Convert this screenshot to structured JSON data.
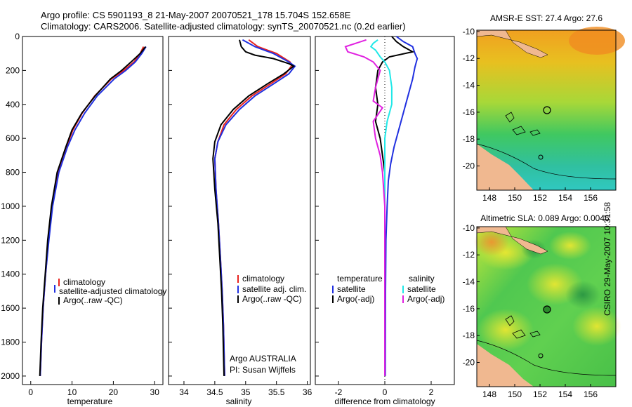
{
  "header": {
    "line1": "Argo profile: CS 5901193_8 21-May-2007 20070521_178 15.704S 152.658E",
    "line2": "Climatology: CARS2006. Satellite-adjusted climatology: synTS_20070521.nc (0.2d earlier)"
  },
  "credits": {
    "program": "Argo AUSTRALIA",
    "pi": "PI: Susan Wijffels",
    "stamp": "CSIRO 29-May-2007 10:31:58"
  },
  "colors": {
    "clim": "#e8231f",
    "sat": "#2030e0",
    "argo": "#000000",
    "sat_s": "#20e8e8",
    "argo_s": "#e020e0"
  },
  "chart_data": [
    {
      "id": "temperature",
      "type": "line",
      "xlabel": "temperature",
      "ylabel": "depth",
      "xlim": [
        -2,
        32
      ],
      "ylim": [
        0,
        2050
      ],
      "xticks": [
        0,
        10,
        20,
        30
      ],
      "yticks": [
        0,
        200,
        400,
        600,
        800,
        1000,
        1200,
        1400,
        1600,
        1800,
        2000
      ],
      "legend": [
        "climatology",
        "satellite-adjusted climatology",
        "Argo(..raw -QC)"
      ],
      "series": [
        {
          "name": "climatology",
          "color": "#e8231f",
          "points": [
            [
              27.3,
              60
            ],
            [
              26.5,
              100
            ],
            [
              25,
              150
            ],
            [
              22.5,
              200
            ],
            [
              19.5,
              250
            ],
            [
              15.5,
              350
            ],
            [
              12.5,
              450
            ],
            [
              10.2,
              550
            ],
            [
              8.6,
              650
            ],
            [
              6.6,
              800
            ],
            [
              5.2,
              1000
            ],
            [
              4.3,
              1200
            ],
            [
              3.6,
              1400
            ],
            [
              3.0,
              1600
            ],
            [
              2.6,
              1800
            ],
            [
              2.3,
              2000
            ]
          ]
        },
        {
          "name": "satellite-adjusted climatology",
          "color": "#2030e0",
          "points": [
            [
              27.9,
              60
            ],
            [
              26.9,
              100
            ],
            [
              25.3,
              150
            ],
            [
              23,
              200
            ],
            [
              20.2,
              250
            ],
            [
              16.1,
              350
            ],
            [
              13.1,
              450
            ],
            [
              10.7,
              550
            ],
            [
              8.9,
              650
            ],
            [
              6.8,
              800
            ],
            [
              5.3,
              1000
            ],
            [
              4.4,
              1200
            ],
            [
              3.6,
              1400
            ],
            [
              3.0,
              1600
            ],
            [
              2.6,
              1800
            ],
            [
              2.3,
              2000
            ]
          ]
        },
        {
          "name": "Argo(..raw -QC)",
          "color": "#000000",
          "points": [
            [
              27.8,
              60
            ],
            [
              26.5,
              100
            ],
            [
              24.3,
              150
            ],
            [
              22,
              200
            ],
            [
              19.3,
              250
            ],
            [
              15.6,
              350
            ],
            [
              12.4,
              450
            ],
            [
              10.0,
              550
            ],
            [
              8.5,
              650
            ],
            [
              6.4,
              800
            ],
            [
              5.0,
              1000
            ],
            [
              4.1,
              1200
            ],
            [
              3.5,
              1400
            ],
            [
              2.9,
              1600
            ],
            [
              2.5,
              1800
            ],
            [
              2.2,
              2000
            ]
          ]
        }
      ]
    },
    {
      "id": "salinity",
      "type": "line",
      "xlabel": "salinity",
      "ylabel": "depth",
      "xlim": [
        33.75,
        36.05
      ],
      "ylim": [
        0,
        2050
      ],
      "xticks": [
        34,
        34.5,
        35,
        35.5,
        36
      ],
      "yticks": [
        0,
        200,
        400,
        600,
        800,
        1000,
        1200,
        1400,
        1600,
        1800,
        2000
      ],
      "legend": [
        "climatology",
        "satellite adj. clim.",
        "Argo(..raw -QC)"
      ],
      "series": [
        {
          "name": "climatology",
          "color": "#e8231f",
          "points": [
            [
              35.05,
              20
            ],
            [
              35.2,
              60
            ],
            [
              35.5,
              100
            ],
            [
              35.72,
              150
            ],
            [
              35.75,
              170
            ],
            [
              35.65,
              220
            ],
            [
              35.4,
              280
            ],
            [
              35.1,
              350
            ],
            [
              34.85,
              430
            ],
            [
              34.65,
              520
            ],
            [
              34.55,
              620
            ],
            [
              34.5,
              720
            ],
            [
              34.52,
              900
            ],
            [
              34.56,
              1100
            ],
            [
              34.59,
              1300
            ],
            [
              34.62,
              1500
            ],
            [
              34.64,
              1700
            ],
            [
              34.66,
              2000
            ]
          ]
        },
        {
          "name": "satellite adj. clim.",
          "color": "#2030e0",
          "points": [
            [
              34.95,
              20
            ],
            [
              35.15,
              60
            ],
            [
              35.45,
              100
            ],
            [
              35.7,
              150
            ],
            [
              35.8,
              175
            ],
            [
              35.7,
              220
            ],
            [
              35.45,
              280
            ],
            [
              35.15,
              350
            ],
            [
              34.9,
              430
            ],
            [
              34.68,
              520
            ],
            [
              34.55,
              620
            ],
            [
              34.5,
              720
            ],
            [
              34.52,
              900
            ],
            [
              34.56,
              1100
            ],
            [
              34.59,
              1300
            ],
            [
              34.62,
              1500
            ],
            [
              34.64,
              1700
            ],
            [
              34.66,
              2000
            ]
          ]
        },
        {
          "name": "Argo(..raw -QC)",
          "color": "#000000",
          "points": [
            [
              34.9,
              20
            ],
            [
              34.93,
              60
            ],
            [
              35.0,
              90
            ],
            [
              35.15,
              110
            ],
            [
              35.45,
              130
            ],
            [
              35.7,
              160
            ],
            [
              35.78,
              175
            ],
            [
              35.62,
              220
            ],
            [
              35.35,
              280
            ],
            [
              35.05,
              350
            ],
            [
              34.8,
              430
            ],
            [
              34.6,
              520
            ],
            [
              34.5,
              620
            ],
            [
              34.47,
              720
            ],
            [
              34.5,
              900
            ],
            [
              34.55,
              1100
            ],
            [
              34.58,
              1300
            ],
            [
              34.61,
              1500
            ],
            [
              34.63,
              1700
            ],
            [
              34.65,
              2000
            ]
          ]
        }
      ]
    },
    {
      "id": "difference",
      "type": "line",
      "xlabel": "difference from climatology",
      "ylabel": "depth",
      "xlim": [
        -3,
        3
      ],
      "ylim": [
        0,
        2050
      ],
      "xticks": [
        -2,
        0,
        2
      ],
      "yticks": [
        0,
        200,
        400,
        600,
        800,
        1000,
        1200,
        1400,
        1600,
        1800,
        2000
      ],
      "legend_temp": [
        "temperature",
        "satellite",
        "Argo(-adj)"
      ],
      "legend_sal": [
        "salinity",
        "satellite",
        "Argo(-adj)"
      ],
      "series": [
        {
          "name": "temperature satellite",
          "color": "#2030e0",
          "points": [
            [
              0.5,
              0
            ],
            [
              0.8,
              30
            ],
            [
              1.2,
              60
            ],
            [
              1.3,
              100
            ],
            [
              1.4,
              130
            ],
            [
              1.3,
              180
            ],
            [
              1.2,
              250
            ],
            [
              1.0,
              350
            ],
            [
              0.8,
              450
            ],
            [
              0.6,
              550
            ],
            [
              0.4,
              650
            ],
            [
              0.25,
              750
            ],
            [
              0.15,
              850
            ],
            [
              0.1,
              1000
            ],
            [
              0.05,
              1200
            ],
            [
              0.03,
              1500
            ],
            [
              0.02,
              2000
            ]
          ]
        },
        {
          "name": "temperature Argo(-adj)",
          "color": "#000000",
          "points": [
            [
              0.3,
              0
            ],
            [
              0.5,
              30
            ],
            [
              0.8,
              60
            ],
            [
              1.2,
              90
            ],
            [
              0.2,
              120
            ],
            [
              -0.1,
              150
            ],
            [
              -0.3,
              200
            ],
            [
              -0.4,
              300
            ],
            [
              -0.3,
              400
            ],
            [
              -0.4,
              500
            ],
            [
              -0.2,
              600
            ],
            [
              -0.1,
              700
            ],
            [
              0.0,
              800
            ],
            [
              0.0,
              1000
            ],
            [
              0.0,
              1500
            ],
            [
              0.0,
              2000
            ]
          ]
        },
        {
          "name": "salinity satellite",
          "color": "#20e8e8",
          "points": [
            [
              -0.3,
              20
            ],
            [
              -0.5,
              40
            ],
            [
              -0.6,
              60
            ],
            [
              -0.4,
              80
            ],
            [
              -0.2,
              120
            ],
            [
              0.0,
              150
            ],
            [
              0.2,
              200
            ],
            [
              0.3,
              300
            ],
            [
              0.3,
              400
            ],
            [
              0.1,
              500
            ],
            [
              0.0,
              600
            ],
            [
              0.0,
              800
            ],
            [
              0.0,
              1000
            ],
            [
              0.0,
              1500
            ],
            [
              0.0,
              2000
            ]
          ]
        },
        {
          "name": "salinity Argo(-adj)",
          "color": "#e020e0",
          "points": [
            [
              -0.8,
              20
            ],
            [
              -1.7,
              60
            ],
            [
              -1.6,
              90
            ],
            [
              -0.9,
              120
            ],
            [
              -0.5,
              150
            ],
            [
              -0.2,
              200
            ],
            [
              -0.4,
              300
            ],
            [
              -0.5,
              380
            ],
            [
              -0.1,
              420
            ],
            [
              -0.5,
              500
            ],
            [
              -0.4,
              600
            ],
            [
              -0.3,
              650
            ],
            [
              -0.2,
              700
            ],
            [
              -0.1,
              800
            ],
            [
              0.0,
              1000
            ],
            [
              0.0,
              1500
            ],
            [
              0.0,
              2000
            ]
          ]
        }
      ]
    },
    {
      "id": "sst_map",
      "type": "heatmap",
      "title": "AMSR-E SST: 27.4 Argo: 27.6",
      "xticks": [
        148,
        150,
        152,
        154,
        156
      ],
      "yticks": [
        -10,
        -12,
        -14,
        -16,
        -18,
        -20
      ],
      "xlim": [
        147,
        158
      ],
      "ylim": [
        -21.8,
        -9.9
      ],
      "float_position": [
        152.658,
        -15.704
      ]
    },
    {
      "id": "sla_map",
      "type": "heatmap",
      "title": "Altimetric SLA: 0.089 Argo: 0.0046",
      "xticks": [
        148,
        150,
        152,
        154,
        156
      ],
      "yticks": [
        -10,
        -12,
        -14,
        -16,
        -18,
        -20
      ],
      "xlim": [
        147,
        158
      ],
      "ylim": [
        -21.8,
        -9.9
      ],
      "float_position": [
        152.658,
        -15.704
      ]
    }
  ]
}
